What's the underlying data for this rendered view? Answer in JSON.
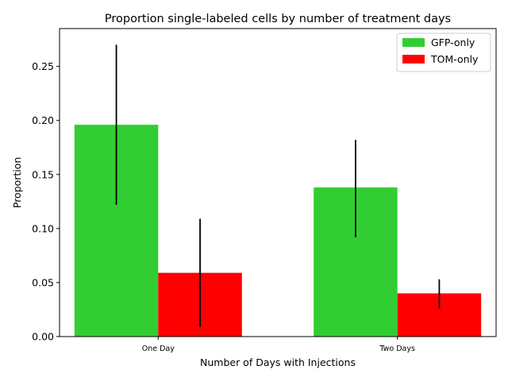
{
  "chart_data": {
    "type": "bar",
    "title": "Proportion single-labeled cells by number of treatment days",
    "xlabel": "Number of Days with Injections",
    "ylabel": "Proportion",
    "categories": [
      "One Day",
      "Two Days"
    ],
    "ylim": [
      0,
      0.285
    ],
    "yticks": [
      0.0,
      0.05,
      0.1,
      0.15,
      0.2,
      0.25
    ],
    "ytick_labels": [
      "0.00",
      "0.05",
      "0.10",
      "0.15",
      "0.20",
      "0.25"
    ],
    "grid": false,
    "legend_position": "top-right",
    "series": [
      {
        "name": "GFP-only",
        "color": "#32cd32",
        "values": [
          0.196,
          0.138
        ],
        "error_low": [
          0.122,
          0.092
        ],
        "error_high": [
          0.27,
          0.182
        ]
      },
      {
        "name": "TOM-only",
        "color": "#ff0000",
        "values": [
          0.059,
          0.04
        ],
        "error_low": [
          0.009,
          0.026
        ],
        "error_high": [
          0.109,
          0.053
        ]
      }
    ]
  }
}
